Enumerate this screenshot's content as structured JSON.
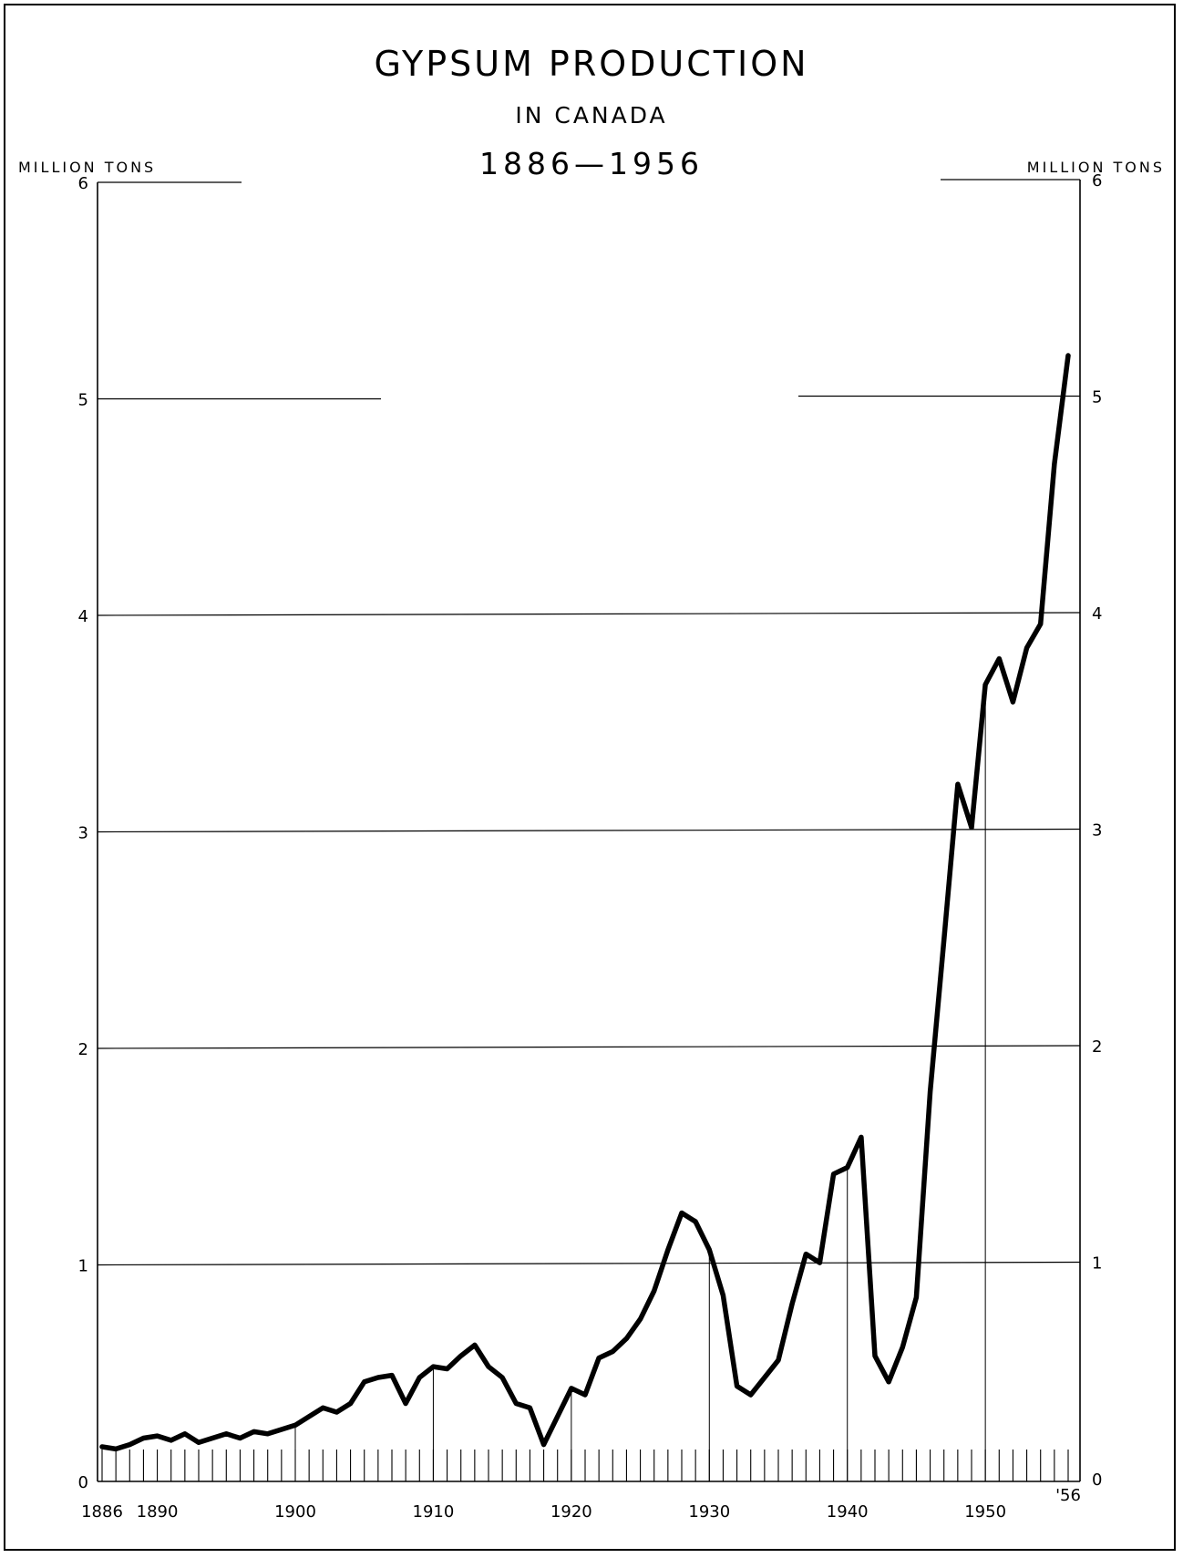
{
  "chart_data": {
    "type": "line",
    "title": "GYPSUM PRODUCTION",
    "subtitle": "IN CANADA",
    "period": "1886—1956",
    "ylabel_left": "MILLION TONS",
    "ylabel_right": "MILLION TONS",
    "ylim": [
      0,
      6
    ],
    "xlim": [
      1886,
      1956
    ],
    "y_ticks": [
      "0",
      "1",
      "2",
      "3",
      "4",
      "5",
      "6"
    ],
    "x_tick_labels": [
      {
        "year": 1886,
        "label": "1886"
      },
      {
        "year": 1890,
        "label": "1890"
      },
      {
        "year": 1900,
        "label": "1900"
      },
      {
        "year": 1910,
        "label": "1910"
      },
      {
        "year": 1920,
        "label": "1920"
      },
      {
        "year": 1930,
        "label": "1930"
      },
      {
        "year": 1940,
        "label": "1940"
      },
      {
        "year": 1950,
        "label": "1950"
      },
      {
        "year": 1956,
        "label": "'56"
      }
    ],
    "grid": "horizontal",
    "line_color": "#000000",
    "series": [
      {
        "x": [
          1886,
          1887,
          1888,
          1889,
          1890,
          1891,
          1892,
          1893,
          1894,
          1895,
          1896,
          1897,
          1898,
          1899,
          1900,
          1901,
          1902,
          1903,
          1904,
          1905,
          1906,
          1907,
          1908,
          1909,
          1910,
          1911,
          1912,
          1913,
          1914,
          1915,
          1916,
          1917,
          1918,
          1919,
          1920,
          1921,
          1922,
          1923,
          1924,
          1925,
          1926,
          1927,
          1928,
          1929,
          1930,
          1931,
          1932,
          1933,
          1934,
          1935,
          1936,
          1937,
          1938,
          1939,
          1940,
          1941,
          1942,
          1943,
          1944,
          1945,
          1946,
          1947,
          1948,
          1949,
          1950,
          1951,
          1952,
          1953,
          1954,
          1955,
          1956
        ],
        "y": [
          0.16,
          0.15,
          0.17,
          0.2,
          0.21,
          0.19,
          0.22,
          0.18,
          0.2,
          0.22,
          0.2,
          0.23,
          0.22,
          0.24,
          0.26,
          0.3,
          0.34,
          0.32,
          0.36,
          0.46,
          0.48,
          0.49,
          0.36,
          0.48,
          0.53,
          0.52,
          0.58,
          0.63,
          0.53,
          0.48,
          0.36,
          0.34,
          0.17,
          0.3,
          0.43,
          0.4,
          0.57,
          0.6,
          0.66,
          0.75,
          0.88,
          1.07,
          1.24,
          1.2,
          1.07,
          0.86,
          0.44,
          0.4,
          0.48,
          0.56,
          0.82,
          1.05,
          1.01,
          1.42,
          1.45,
          1.59,
          0.58,
          0.46,
          0.62,
          0.85,
          1.8,
          2.5,
          3.22,
          3.02,
          3.68,
          3.8,
          3.6,
          3.85,
          3.96,
          4.7,
          5.2
        ]
      }
    ]
  }
}
